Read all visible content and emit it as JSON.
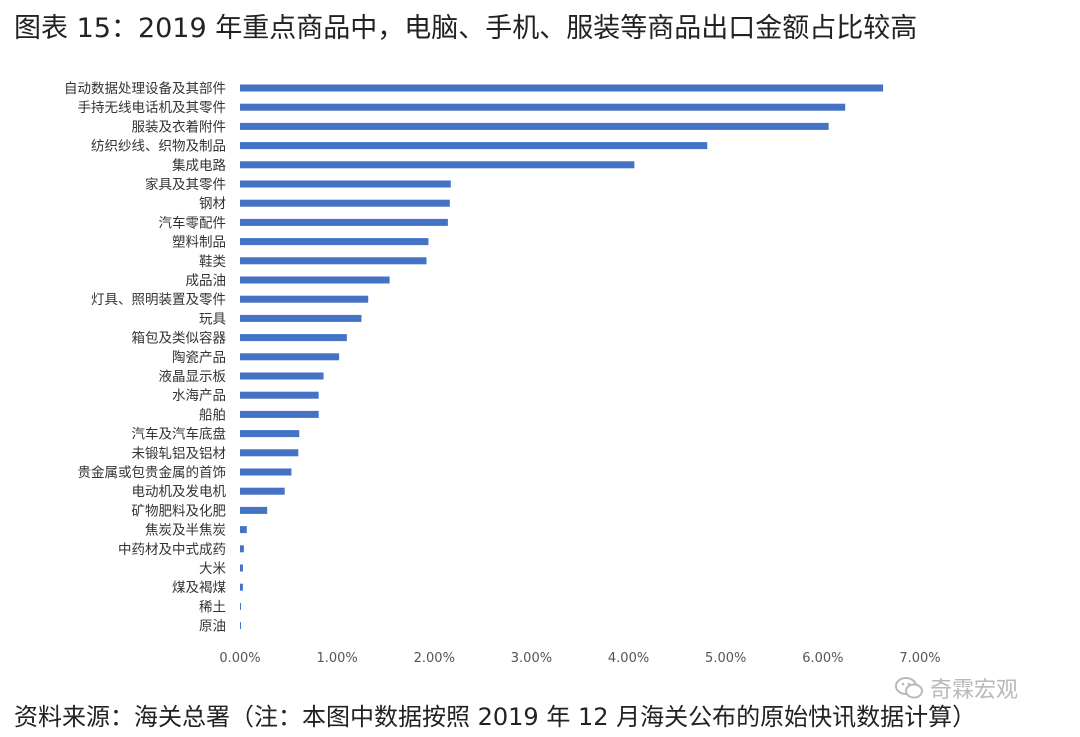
{
  "title": "图表 15：2019 年重点商品中，电脑、手机、服装等商品出口金额占比较高",
  "source": "资料来源：海关总署（注：本图中数据按照 2019 年 12 月海关公布的原始快讯数据计算）",
  "watermark": {
    "text": "奇霖宏观",
    "icon": "wechat-icon"
  },
  "chart_data": {
    "type": "bar",
    "orientation": "horizontal",
    "bar_color": "#4472C4",
    "xlim": [
      0,
      0.07
    ],
    "x_ticks": [
      "0.00%",
      "1.00%",
      "2.00%",
      "3.00%",
      "4.00%",
      "5.00%",
      "6.00%",
      "7.00%"
    ],
    "grid": false,
    "categories": [
      "自动数据处理设备及其部件",
      "手持无线电话机及其零件",
      "服装及衣着附件",
      "纺织纱线、织物及制品",
      "集成电路",
      "家具及其零件",
      "钢材",
      "汽车零配件",
      "塑料制品",
      "鞋类",
      "成品油",
      "灯具、照明装置及零件",
      "玩具",
      "箱包及类似容器",
      "陶瓷产品",
      "液晶显示板",
      "水海产品",
      "船舶",
      "汽车及汽车底盘",
      "未锻轧铝及铝材",
      "贵金属或包贵金属的首饰",
      "电动机及发电机",
      "矿物肥料及化肥",
      "焦炭及半焦炭",
      "中药材及中式成药",
      "大米",
      "煤及褐煤",
      "稀土",
      "原油"
    ],
    "values": [
      0.0662,
      0.0623,
      0.0606,
      0.0481,
      0.0406,
      0.0217,
      0.0216,
      0.0214,
      0.0194,
      0.0192,
      0.0154,
      0.0132,
      0.0125,
      0.011,
      0.0102,
      0.0086,
      0.0081,
      0.0081,
      0.0061,
      0.006,
      0.0053,
      0.0046,
      0.0028,
      0.0007,
      0.0004,
      0.0003,
      0.0003,
      0.0001,
      0.0001
    ]
  }
}
